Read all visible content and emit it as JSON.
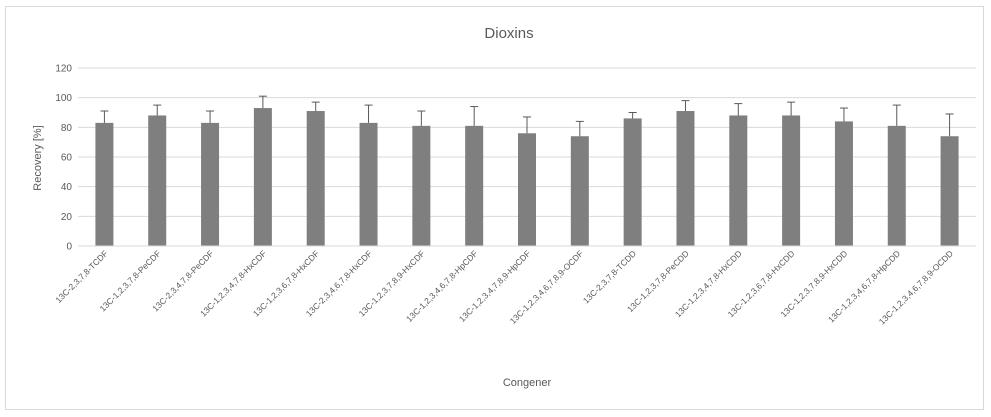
{
  "chart_data": {
    "type": "bar",
    "title": "Dioxins",
    "xlabel": "Congener",
    "ylabel": "Recovery [%]",
    "ylim": [
      0,
      120
    ],
    "yticks": [
      0,
      20,
      40,
      60,
      80,
      100,
      120
    ],
    "grid": true,
    "categories": [
      "13C-2,3,7,8-TCDF",
      "13C-1,2,3,7,8-PeCDF",
      "13C-2,3,4,7,8-PeCDF",
      "13C-1,2,3,4,7,8-HxCDF",
      "13C-1,2,3,6,7,8-HxCDF",
      "13C-2,3,4,6,7,8-HxCDF",
      "13C-1,2,3,7,8,9-HxCDF",
      "13C-1,2,3,4,6,7,8-HpCDF",
      "13C-1,2,3,4,7,8,9-HpCDF",
      "13C-1,2,3,4,6,7,8,9-OCDF",
      "13C-2,3,7,8-TCDD",
      "13C-1,2,3,7,8-PeCDD",
      "13C-1,2,3,4,7,8-HxCDD",
      "13C-1,2,3,6,7,8-HxCDD",
      "13C-1,2,3,7,8,9-HxCDD",
      "13C-1,2,3,4,6,7,8-HpCDD",
      "13C-1,2,3,4,6,7,8,9-OCDD"
    ],
    "values": [
      83,
      88,
      83,
      93,
      91,
      83,
      81,
      81,
      76,
      74,
      86,
      91,
      88,
      88,
      84,
      81,
      74
    ],
    "error_upper": [
      91,
      95,
      91,
      101,
      97,
      95,
      91,
      94,
      87,
      84,
      90,
      98,
      96,
      97,
      93,
      95,
      89
    ],
    "colors": {
      "bar": "#7f7f7f",
      "error_bar": "#595959",
      "grid": "#d9d9d9"
    }
  }
}
